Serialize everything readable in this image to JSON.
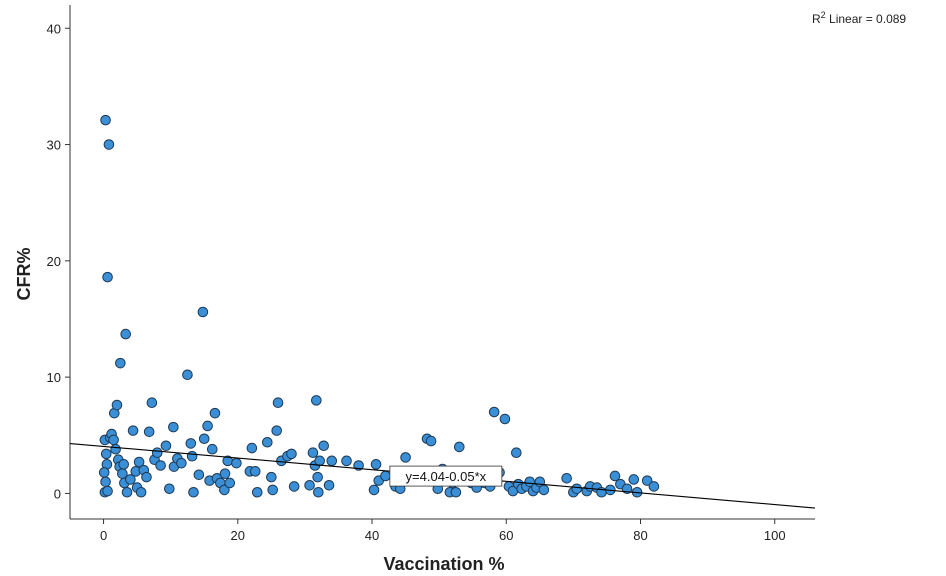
{
  "chart_data": {
    "type": "scatter",
    "title": "",
    "xlabel": "Vaccination %",
    "ylabel": "CFR%",
    "xlim": [
      -5,
      106
    ],
    "ylim": [
      -2.2,
      42
    ],
    "x_ticks": [
      0,
      20,
      40,
      60,
      80,
      100
    ],
    "y_ticks": [
      0,
      10,
      20,
      30,
      40
    ],
    "grid": false,
    "marker_color": "#3a8fd6",
    "marker_edge_color": "#1f3a55",
    "line_color": "#000000",
    "fit_line": {
      "intercept": 4.04,
      "slope": -0.05,
      "x_range": [
        -5,
        106
      ]
    },
    "fit_label": "y=4.04-0.05*x",
    "fit_label_x": 51,
    "r2_label": {
      "prefix": "R",
      "sup": "2",
      "text": " Linear = 0.089"
    },
    "points": [
      [
        0.3,
        32.1
      ],
      [
        0.8,
        30.0
      ],
      [
        0.6,
        18.6
      ],
      [
        3.3,
        13.7
      ],
      [
        2.5,
        11.2
      ],
      [
        0.2,
        4.6
      ],
      [
        0.4,
        3.4
      ],
      [
        0.5,
        2.5
      ],
      [
        0.1,
        1.8
      ],
      [
        0.3,
        1.0
      ],
      [
        0.2,
        0.1
      ],
      [
        0.6,
        0.2
      ],
      [
        1.0,
        4.8
      ],
      [
        1.2,
        5.1
      ],
      [
        1.5,
        4.6
      ],
      [
        1.8,
        3.8
      ],
      [
        2.2,
        2.9
      ],
      [
        2.4,
        2.3
      ],
      [
        2.8,
        1.7
      ],
      [
        3.1,
        0.9
      ],
      [
        1.6,
        6.9
      ],
      [
        2.0,
        7.6
      ],
      [
        3.0,
        2.5
      ],
      [
        3.5,
        0.1
      ],
      [
        4.0,
        1.2
      ],
      [
        4.4,
        5.4
      ],
      [
        4.8,
        1.9
      ],
      [
        5.0,
        0.5
      ],
      [
        5.3,
        2.7
      ],
      [
        5.6,
        0.1
      ],
      [
        6.0,
        2.0
      ],
      [
        6.4,
        1.4
      ],
      [
        6.8,
        5.3
      ],
      [
        7.2,
        7.8
      ],
      [
        7.6,
        2.9
      ],
      [
        8.0,
        3.5
      ],
      [
        8.5,
        2.4
      ],
      [
        9.3,
        4.1
      ],
      [
        9.8,
        0.4
      ],
      [
        10.4,
        5.7
      ],
      [
        10.5,
        2.3
      ],
      [
        11.0,
        3.0
      ],
      [
        11.6,
        2.6
      ],
      [
        12.5,
        10.2
      ],
      [
        13.0,
        4.3
      ],
      [
        13.2,
        3.2
      ],
      [
        13.4,
        0.1
      ],
      [
        14.2,
        1.6
      ],
      [
        14.8,
        15.6
      ],
      [
        15.0,
        4.7
      ],
      [
        15.5,
        5.8
      ],
      [
        15.8,
        1.1
      ],
      [
        16.2,
        3.8
      ],
      [
        16.6,
        6.9
      ],
      [
        16.9,
        1.3
      ],
      [
        17.4,
        0.9
      ],
      [
        18.0,
        0.3
      ],
      [
        18.1,
        1.7
      ],
      [
        18.5,
        2.8
      ],
      [
        18.8,
        0.9
      ],
      [
        19.8,
        2.6
      ],
      [
        21.8,
        1.9
      ],
      [
        22.1,
        3.9
      ],
      [
        22.6,
        1.9
      ],
      [
        22.9,
        0.1
      ],
      [
        24.4,
        4.4
      ],
      [
        25.0,
        1.4
      ],
      [
        25.2,
        0.3
      ],
      [
        25.8,
        5.4
      ],
      [
        26.0,
        7.8
      ],
      [
        26.5,
        2.8
      ],
      [
        27.4,
        3.2
      ],
      [
        28.0,
        3.4
      ],
      [
        28.4,
        0.6
      ],
      [
        30.7,
        0.7
      ],
      [
        31.2,
        3.5
      ],
      [
        31.5,
        2.4
      ],
      [
        31.7,
        8.0
      ],
      [
        31.9,
        1.4
      ],
      [
        32.0,
        0.1
      ],
      [
        32.2,
        2.8
      ],
      [
        32.8,
        4.1
      ],
      [
        33.6,
        0.7
      ],
      [
        34.0,
        2.8
      ],
      [
        36.2,
        2.8
      ],
      [
        38.0,
        2.4
      ],
      [
        40.3,
        0.3
      ],
      [
        40.6,
        2.5
      ],
      [
        41.0,
        1.1
      ],
      [
        42.0,
        1.5
      ],
      [
        43.5,
        0.6
      ],
      [
        44.2,
        0.4
      ],
      [
        45.0,
        3.1
      ],
      [
        46.4,
        1.4
      ],
      [
        47.4,
        1.1
      ],
      [
        48.2,
        4.7
      ],
      [
        48.8,
        4.5
      ],
      [
        49.8,
        0.4
      ],
      [
        50.5,
        2.1
      ],
      [
        51.6,
        0.1
      ],
      [
        52.0,
        0.9
      ],
      [
        52.5,
        0.1
      ],
      [
        53.0,
        4.0
      ],
      [
        54.8,
        0.9
      ],
      [
        55.6,
        0.5
      ],
      [
        56.8,
        0.9
      ],
      [
        57.6,
        0.6
      ],
      [
        58.2,
        7.0
      ],
      [
        59.0,
        1.8
      ],
      [
        59.8,
        6.4
      ],
      [
        60.4,
        0.6
      ],
      [
        61.0,
        0.2
      ],
      [
        61.5,
        3.5
      ],
      [
        61.8,
        0.8
      ],
      [
        62.3,
        0.4
      ],
      [
        63.0,
        0.6
      ],
      [
        63.5,
        1.0
      ],
      [
        64.0,
        0.2
      ],
      [
        64.5,
        0.5
      ],
      [
        65.0,
        1.0
      ],
      [
        65.6,
        0.3
      ],
      [
        69.0,
        1.3
      ],
      [
        70.0,
        0.1
      ],
      [
        70.5,
        0.4
      ],
      [
        72.0,
        0.2
      ],
      [
        72.5,
        0.6
      ],
      [
        73.5,
        0.5
      ],
      [
        74.2,
        0.1
      ],
      [
        75.5,
        0.3
      ],
      [
        76.2,
        1.5
      ],
      [
        77.0,
        0.8
      ],
      [
        78.0,
        0.4
      ],
      [
        79.0,
        1.2
      ],
      [
        79.5,
        0.1
      ],
      [
        81.0,
        1.1
      ],
      [
        82.0,
        0.6
      ]
    ]
  }
}
